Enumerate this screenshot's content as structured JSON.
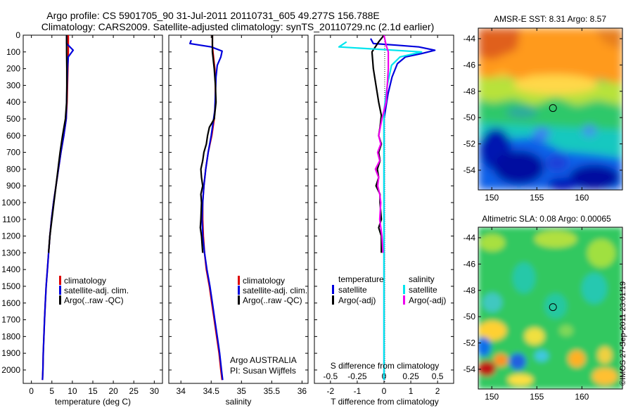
{
  "title": {
    "line1": "Argo profile: CS 5901705_90 31-Jul-2011 20110731_605 49.277S 156.788E",
    "line2": "Climatology: CARS2009. Satellite-adjusted climatology: synTS_20110729.nc (2.1d earlier)"
  },
  "colors": {
    "climatology": "#dd0000",
    "satellite": "#0000dd",
    "argo": "#000000",
    "salinity_satellite": "#00e5ee",
    "salinity_argo": "#ee00ee"
  },
  "depth_ticks": [
    "0",
    "100",
    "200",
    "300",
    "400",
    "500",
    "600",
    "700",
    "800",
    "900",
    "1000",
    "1100",
    "1200",
    "1300",
    "1400",
    "1500",
    "1600",
    "1700",
    "1800",
    "1900",
    "2000"
  ],
  "chart_data": [
    {
      "type": "line",
      "name": "temperature-profile",
      "xlabel": "temperature (deg C)",
      "x_ticks": [
        "0",
        "5",
        "10",
        "15",
        "20",
        "25",
        "30"
      ],
      "xlim": [
        -2,
        32
      ],
      "ylim": [
        2080,
        0
      ],
      "legend": [
        "climatology",
        "satellite-adj. clim.",
        "Argo(..raw -QC)"
      ],
      "series": [
        {
          "name": "climatology",
          "color": "#dd0000",
          "points": [
            [
              9.0,
              0
            ],
            [
              9.0,
              60
            ],
            [
              9.0,
              100
            ],
            [
              8.9,
              200
            ],
            [
              8.8,
              300
            ],
            [
              8.7,
              400
            ],
            [
              8.5,
              500
            ],
            [
              7.9,
              600
            ],
            [
              7.2,
              700
            ],
            [
              6.6,
              800
            ],
            [
              6.0,
              900
            ],
            [
              5.4,
              1000
            ],
            [
              4.9,
              1100
            ],
            [
              4.5,
              1200
            ],
            [
              4.2,
              1300
            ],
            [
              3.9,
              1400
            ],
            [
              3.6,
              1500
            ],
            [
              3.4,
              1600
            ],
            [
              3.2,
              1700
            ],
            [
              3.05,
              1800
            ],
            [
              2.9,
              1900
            ],
            [
              2.8,
              2000
            ],
            [
              2.7,
              2060
            ]
          ]
        },
        {
          "name": "satellite-adj. clim.",
          "color": "#0000dd",
          "points": [
            [
              8.6,
              0
            ],
            [
              8.6,
              50
            ],
            [
              10.2,
              90
            ],
            [
              9.0,
              130
            ],
            [
              8.8,
              200
            ],
            [
              8.7,
              300
            ],
            [
              8.6,
              400
            ],
            [
              8.5,
              500
            ],
            [
              7.9,
              600
            ],
            [
              7.2,
              700
            ],
            [
              6.6,
              800
            ],
            [
              6.0,
              900
            ],
            [
              5.4,
              1000
            ],
            [
              4.9,
              1100
            ],
            [
              4.5,
              1200
            ],
            [
              4.2,
              1300
            ],
            [
              3.9,
              1400
            ],
            [
              3.6,
              1500
            ],
            [
              3.4,
              1600
            ],
            [
              3.2,
              1700
            ],
            [
              3.05,
              1800
            ],
            [
              2.9,
              1900
            ],
            [
              2.8,
              2000
            ],
            [
              2.7,
              2060
            ]
          ]
        },
        {
          "name": "Argo(..raw -QC)",
          "color": "#000000",
          "points": [
            [
              8.6,
              0
            ],
            [
              8.6,
              100
            ],
            [
              8.65,
              200
            ],
            [
              8.65,
              300
            ],
            [
              8.6,
              400
            ],
            [
              8.3,
              500
            ],
            [
              7.6,
              600
            ],
            [
              7.0,
              700
            ],
            [
              6.5,
              800
            ],
            [
              6.0,
              900
            ],
            [
              5.5,
              1000
            ],
            [
              5.0,
              1100
            ],
            [
              4.5,
              1200
            ],
            [
              4.2,
              1300
            ]
          ]
        }
      ]
    },
    {
      "type": "line",
      "name": "salinity-profile",
      "xlabel": "salinity",
      "x_ticks": [
        "34",
        "34.5",
        "35",
        "35.5",
        "36"
      ],
      "xlim": [
        33.8,
        36.1
      ],
      "ylim": [
        2080,
        0
      ],
      "legend": [
        "climatology",
        "satellite-adj. clim.",
        "Argo(..raw -QC)"
      ],
      "annotation": [
        "Argo AUSTRALIA",
        "PI: Susan Wijffels"
      ],
      "series": [
        {
          "name": "climatology",
          "color": "#dd0000",
          "points": [
            [
              34.52,
              0
            ],
            [
              34.52,
              60
            ],
            [
              34.53,
              100
            ],
            [
              34.56,
              200
            ],
            [
              34.57,
              300
            ],
            [
              34.57,
              400
            ],
            [
              34.55,
              500
            ],
            [
              34.51,
              600
            ],
            [
              34.45,
              700
            ],
            [
              34.41,
              800
            ],
            [
              34.38,
              900
            ],
            [
              34.36,
              1000
            ],
            [
              34.36,
              1100
            ],
            [
              34.37,
              1200
            ],
            [
              34.39,
              1300
            ],
            [
              34.42,
              1400
            ],
            [
              34.47,
              1500
            ],
            [
              34.51,
              1600
            ],
            [
              34.55,
              1700
            ],
            [
              34.59,
              1800
            ],
            [
              34.63,
              1900
            ],
            [
              34.66,
              2000
            ],
            [
              34.68,
              2060
            ]
          ]
        },
        {
          "name": "satellite-adj. clim.",
          "color": "#0000dd",
          "points": [
            [
              34.17,
              30
            ],
            [
              34.15,
              50
            ],
            [
              34.5,
              70
            ],
            [
              34.68,
              95
            ],
            [
              34.66,
              130
            ],
            [
              34.6,
              180
            ],
            [
              34.58,
              250
            ],
            [
              34.57,
              350
            ],
            [
              34.56,
              450
            ],
            [
              34.54,
              500
            ],
            [
              34.5,
              600
            ],
            [
              34.45,
              700
            ],
            [
              34.41,
              800
            ],
            [
              34.38,
              900
            ],
            [
              34.36,
              1000
            ],
            [
              34.35,
              1100
            ],
            [
              34.36,
              1200
            ],
            [
              34.39,
              1300
            ],
            [
              34.43,
              1400
            ],
            [
              34.48,
              1500
            ],
            [
              34.52,
              1600
            ],
            [
              34.56,
              1700
            ],
            [
              34.6,
              1800
            ],
            [
              34.64,
              1900
            ],
            [
              34.67,
              2000
            ],
            [
              34.69,
              2060
            ]
          ]
        },
        {
          "name": "Argo(..raw -QC)",
          "color": "#000000",
          "points": [
            [
              34.52,
              0
            ],
            [
              34.52,
              100
            ],
            [
              34.55,
              200
            ],
            [
              34.57,
              300
            ],
            [
              34.58,
              400
            ],
            [
              34.55,
              500
            ],
            [
              34.47,
              550
            ],
            [
              34.44,
              600
            ],
            [
              34.42,
              650
            ],
            [
              34.38,
              700
            ],
            [
              34.36,
              750
            ],
            [
              34.33,
              800
            ],
            [
              34.34,
              850
            ],
            [
              34.36,
              900
            ],
            [
              34.33,
              950
            ],
            [
              34.34,
              1000
            ],
            [
              34.33,
              1100
            ],
            [
              34.32,
              1150
            ],
            [
              34.34,
              1200
            ],
            [
              34.36,
              1300
            ]
          ]
        }
      ]
    },
    {
      "type": "line",
      "name": "difference-from-climatology",
      "xlabel": "T difference from climatology",
      "xlabel_top": "S difference from climatology",
      "x_ticks": [
        "-2",
        "-1",
        "0",
        "1",
        "2"
      ],
      "x_ticks_top": [
        "-0.5",
        "-0.25",
        "0",
        "0.25",
        "0.5"
      ],
      "xlim": [
        -2.6,
        2.6
      ],
      "ylim": [
        2080,
        0
      ],
      "legend_temperature": {
        "heading": "temperature",
        "items": [
          "satellite",
          "Argo(-adj)"
        ]
      },
      "legend_salinity": {
        "heading": "salinity",
        "items": [
          "satellite",
          "Argo(-adj)"
        ]
      },
      "series": [
        {
          "name": "temperature satellite",
          "color": "#0000dd",
          "points": [
            [
              -0.5,
              20
            ],
            [
              -0.4,
              50
            ],
            [
              0.5,
              60
            ],
            [
              1.3,
              70
            ],
            [
              1.9,
              90
            ],
            [
              1.4,
              110
            ],
            [
              0.8,
              130
            ],
            [
              0.5,
              170
            ],
            [
              0.3,
              250
            ],
            [
              0.15,
              350
            ],
            [
              0.05,
              450
            ],
            [
              0,
              500
            ],
            [
              0,
              2060
            ]
          ]
        },
        {
          "name": "temperature Argo(-adj)",
          "color": "#000000",
          "points": [
            [
              0,
              0
            ],
            [
              -0.2,
              40
            ],
            [
              -0.45,
              100
            ],
            [
              -0.4,
              200
            ],
            [
              -0.3,
              300
            ],
            [
              -0.2,
              400
            ],
            [
              -0.1,
              480
            ],
            [
              -0.15,
              550
            ],
            [
              -0.2,
              600
            ],
            [
              -0.1,
              650
            ],
            [
              -0.2,
              700
            ],
            [
              -0.15,
              750
            ],
            [
              -0.25,
              800
            ],
            [
              -0.2,
              850
            ],
            [
              -0.3,
              900
            ],
            [
              -0.15,
              950
            ],
            [
              -0.15,
              1000
            ],
            [
              -0.1,
              1100
            ],
            [
              -0.2,
              1150
            ],
            [
              -0.1,
              1200
            ],
            [
              -0.1,
              1300
            ]
          ]
        },
        {
          "name": "salinity satellite",
          "color": "#00e5ee",
          "points": [
            [
              -0.35,
              40
            ],
            [
              -0.42,
              70
            ],
            [
              0.35,
              100
            ],
            [
              0.15,
              130
            ],
            [
              0.07,
              180
            ],
            [
              0.03,
              300
            ],
            [
              0,
              450
            ],
            [
              0,
              2060
            ]
          ]
        },
        {
          "name": "salinity Argo(-adj)",
          "color": "#ee00ee",
          "points": [
            [
              0,
              0
            ],
            [
              0.02,
              60
            ],
            [
              0.04,
              100
            ],
            [
              0.04,
              200
            ],
            [
              0.03,
              300
            ],
            [
              0.02,
              400
            ],
            [
              0,
              450
            ],
            [
              -0.02,
              500
            ],
            [
              -0.05,
              600
            ],
            [
              -0.03,
              650
            ],
            [
              -0.06,
              700
            ],
            [
              -0.04,
              750
            ],
            [
              -0.08,
              800
            ],
            [
              -0.05,
              850
            ],
            [
              -0.06,
              900
            ],
            [
              -0.04,
              950
            ],
            [
              -0.03,
              1000
            ],
            [
              -0.04,
              1100
            ],
            [
              -0.03,
              1150
            ],
            [
              -0.02,
              1200
            ],
            [
              -0.01,
              1300
            ]
          ]
        }
      ]
    },
    {
      "type": "heatmap",
      "name": "amsr-sst-map",
      "title": "AMSR-E SST: 8.31 Argo: 8.57",
      "x_ticks": [
        "150",
        "155",
        "160"
      ],
      "y_ticks": [
        "-44",
        "-46",
        "-48",
        "-50",
        "-52",
        "-54"
      ],
      "xlim": [
        148.5,
        164.5
      ],
      "ylim": [
        -55.5,
        -43.2
      ],
      "marker": {
        "lon": 156.788,
        "lat": -49.277
      }
    },
    {
      "type": "heatmap",
      "name": "altimetric-sla-map",
      "title": "Altimetric SLA: 0.08 Argo: 0.00065",
      "x_ticks": [
        "150",
        "155",
        "160"
      ],
      "y_ticks": [
        "-44",
        "-46",
        "-48",
        "-50",
        "-52",
        "-54"
      ],
      "xlim": [
        148.5,
        164.5
      ],
      "ylim": [
        -55.5,
        -43.2
      ],
      "marker": {
        "lon": 156.788,
        "lat": -49.277
      }
    }
  ],
  "side_label": "©IMOS 27-Sep-2011 23:01:19"
}
